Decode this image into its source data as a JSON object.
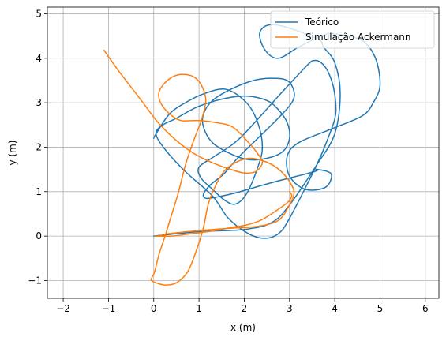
{
  "chart_data": {
    "type": "line",
    "xlabel": "x (m)",
    "ylabel": "y (m)",
    "xlim": [
      -2.35,
      6.3
    ],
    "ylim": [
      -1.4,
      5.15
    ],
    "grid": true,
    "legend_position": "upper-right",
    "xticks": [
      -2,
      -1,
      0,
      1,
      2,
      3,
      4,
      5,
      6
    ],
    "yticks": [
      -1,
      0,
      1,
      2,
      3,
      4,
      5
    ],
    "xtick_labels": [
      "−2",
      "−1",
      "0",
      "1",
      "2",
      "3",
      "4",
      "5",
      "6"
    ],
    "ytick_labels": [
      "−1",
      "0",
      "1",
      "2",
      "3",
      "4",
      "5"
    ],
    "series": [
      {
        "name": "Teórico",
        "color": "#1f77b4",
        "x": [
          0.0,
          1.0,
          2.0,
          2.6,
          3.0,
          3.6,
          4.0,
          4.12,
          4.0,
          3.75,
          3.6,
          2.7,
          2.35,
          2.45,
          2.75,
          3.2,
          3.7,
          4.0,
          4.6,
          4.9,
          5.0,
          4.85,
          4.6,
          3.9,
          3.2,
          2.95,
          3.0,
          3.35,
          3.8,
          3.92,
          3.6,
          3.55,
          2.6,
          1.8,
          1.4,
          1.15,
          1.1,
          1.25,
          1.55,
          1.85,
          2.3,
          2.75,
          3.05,
          3.1,
          2.95,
          2.6,
          2.2,
          1.7,
          1.3,
          1.1,
          1.1,
          1.3,
          1.7,
          2.1,
          2.5,
          2.85,
          3.0,
          2.95,
          2.75,
          2.5,
          2.05,
          1.5,
          0.95,
          0.5,
          0.2,
          0.05,
          0.25,
          0.7,
          1.3,
          1.65,
          2.1,
          2.45,
          2.75,
          3.0,
          3.6,
          3.85,
          4.02,
          3.98,
          3.85,
          3.7,
          3.55,
          3.4,
          2.8,
          1.9,
          1.35,
          1.0,
          1.05,
          1.3,
          1.55,
          1.8,
          2.05,
          2.3,
          2.4,
          2.3,
          2.05,
          1.6,
          1.1,
          0.7,
          0.35,
          0.05,
          0.0
        ],
        "y": [
          0.0,
          0.1,
          0.15,
          0.3,
          0.7,
          1.6,
          2.3,
          3.2,
          3.9,
          4.25,
          4.45,
          4.75,
          4.6,
          4.2,
          4.0,
          4.25,
          4.5,
          4.55,
          4.4,
          4.0,
          3.4,
          3.0,
          2.7,
          2.4,
          2.1,
          1.8,
          1.35,
          1.05,
          1.1,
          1.4,
          1.5,
          1.45,
          1.2,
          0.97,
          0.88,
          0.85,
          0.95,
          1.15,
          1.4,
          1.75,
          2.2,
          2.65,
          3.0,
          3.25,
          3.5,
          3.55,
          3.5,
          3.3,
          3.05,
          2.75,
          2.45,
          2.1,
          1.85,
          1.72,
          1.75,
          1.9,
          2.2,
          2.55,
          2.85,
          3.05,
          3.15,
          3.08,
          2.9,
          2.65,
          2.5,
          2.3,
          1.95,
          1.45,
          0.9,
          0.4,
          0.05,
          -0.05,
          0.05,
          0.4,
          1.6,
          2.2,
          2.75,
          3.3,
          3.7,
          3.9,
          3.95,
          3.85,
          3.2,
          2.2,
          1.8,
          1.55,
          1.3,
          1.05,
          0.82,
          0.72,
          0.95,
          1.55,
          2.0,
          2.55,
          3.0,
          3.3,
          3.2,
          3.0,
          2.75,
          2.3,
          2.2
        ]
      },
      {
        "name": "Simulação Ackermann",
        "color": "#ff7f0e",
        "x": [
          -1.1,
          -0.8,
          -0.5,
          -0.2,
          0.1,
          0.5,
          0.9,
          1.3,
          1.7,
          2.0,
          2.25,
          2.4,
          2.3,
          2.1,
          1.75,
          1.4,
          1.0,
          0.6,
          0.35,
          0.15,
          0.12,
          0.3,
          0.55,
          0.85,
          1.05,
          1.15,
          1.05,
          0.9,
          0.7,
          0.55,
          0.4,
          0.25,
          0.12,
          0.02,
          -0.05,
          -0.05,
          0.05,
          0.25,
          0.5,
          0.75,
          0.95,
          1.1,
          1.2,
          1.35,
          1.55,
          1.8,
          2.1,
          2.4,
          2.7,
          2.95,
          3.1,
          3.0,
          2.75,
          2.3,
          1.75,
          1.3,
          0.75,
          0.3,
          0.1,
          0.05,
          0.4,
          0.8,
          1.2,
          1.5,
          1.75,
          2.05,
          2.35,
          2.6,
          2.95,
          3.05,
          3.0
        ],
        "y": [
          4.18,
          3.75,
          3.35,
          2.95,
          2.55,
          2.15,
          1.85,
          1.65,
          1.5,
          1.42,
          1.45,
          1.65,
          1.85,
          2.1,
          2.45,
          2.55,
          2.6,
          2.6,
          2.75,
          3.0,
          3.25,
          3.5,
          3.63,
          3.6,
          3.4,
          3.05,
          2.6,
          2.2,
          1.6,
          1.0,
          0.5,
          0.0,
          -0.4,
          -0.8,
          -0.95,
          -1.0,
          -1.05,
          -1.1,
          -1.05,
          -0.8,
          -0.3,
          0.2,
          0.7,
          1.1,
          1.45,
          1.65,
          1.75,
          1.7,
          1.55,
          1.3,
          1.0,
          0.7,
          0.35,
          0.22,
          0.18,
          0.15,
          0.1,
          0.05,
          0.0,
          0.0,
          0.0,
          0.05,
          0.1,
          0.15,
          0.2,
          0.25,
          0.35,
          0.5,
          0.75,
          0.9,
          1.0
        ]
      }
    ]
  }
}
